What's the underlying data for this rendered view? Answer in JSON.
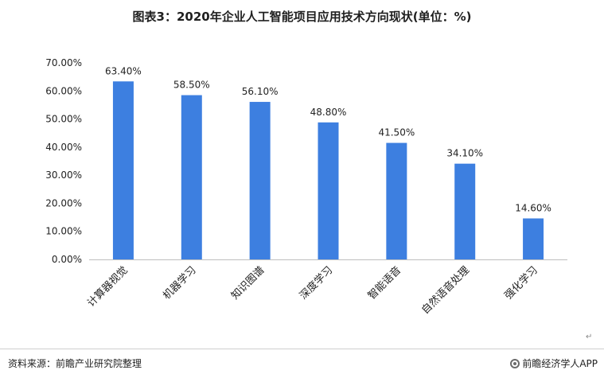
{
  "title": "图表3：2020年企业人工智能项目应用技术方向现状(单位：%)",
  "chart_data": {
    "type": "bar",
    "categories": [
      "计算器视觉",
      "机器学习",
      "知识图谱",
      "深度学习",
      "智能语音",
      "自然语音处理",
      "强化学习"
    ],
    "values": [
      63.4,
      58.5,
      56.1,
      48.8,
      41.5,
      34.1,
      14.6
    ],
    "data_labels": [
      "63.40%",
      "58.50%",
      "56.10%",
      "48.80%",
      "41.50%",
      "34.10%",
      "14.60%"
    ],
    "y_ticks": [
      "0.00%",
      "10.00%",
      "20.00%",
      "30.00%",
      "40.00%",
      "50.00%",
      "60.00%",
      "70.00%"
    ],
    "ylim": [
      0,
      70
    ],
    "bar_color": "#3d7fe0",
    "grid": false,
    "xlabel": "",
    "ylabel": ""
  },
  "footer": {
    "source": "资料来源：前瞻产业研究院整理",
    "brand": "前瞻经济学人APP"
  },
  "return_mark": "↵"
}
